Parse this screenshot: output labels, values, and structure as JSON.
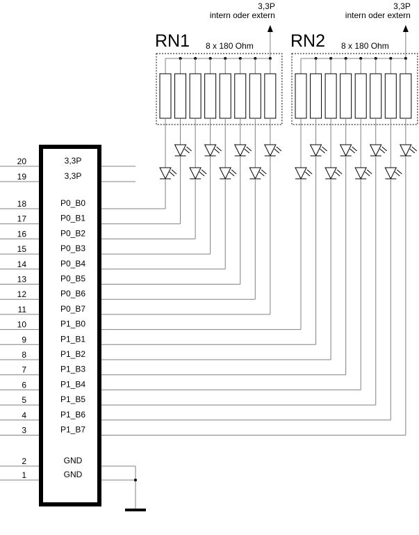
{
  "connector": {
    "pins": [
      {
        "num": "20",
        "label": "3,3P"
      },
      {
        "num": "19",
        "label": "3,3P"
      },
      {
        "num": "18",
        "label": "P0_B0"
      },
      {
        "num": "17",
        "label": "P0_B1"
      },
      {
        "num": "16",
        "label": "P0_B2"
      },
      {
        "num": "15",
        "label": "P0_B3"
      },
      {
        "num": "14",
        "label": "P0_B4"
      },
      {
        "num": "13",
        "label": "P0_B5"
      },
      {
        "num": "12",
        "label": "P0_B6"
      },
      {
        "num": "11",
        "label": "P0_B7"
      },
      {
        "num": "10",
        "label": "P1_B0"
      },
      {
        "num": "9",
        "label": "P1_B1"
      },
      {
        "num": "8",
        "label": "P1_B2"
      },
      {
        "num": "7",
        "label": "P1_B3"
      },
      {
        "num": "6",
        "label": "P1_B4"
      },
      {
        "num": "5",
        "label": "P1_B5"
      },
      {
        "num": "4",
        "label": "P1_B6"
      },
      {
        "num": "3",
        "label": "P1_B7"
      },
      {
        "num": "2",
        "label": "GND"
      },
      {
        "num": "1",
        "label": "GND"
      }
    ]
  },
  "networks": [
    {
      "name": "RN1",
      "value": "8 x 180 Ohm",
      "supply": "3,3P",
      "supply_note": "intern oder extern"
    },
    {
      "name": "RN2",
      "value": "8 x 180 Ohm",
      "supply": "3,3P",
      "supply_note": "intern oder extern"
    }
  ],
  "colors": {
    "wire": "#808080",
    "outline": "#000000"
  }
}
